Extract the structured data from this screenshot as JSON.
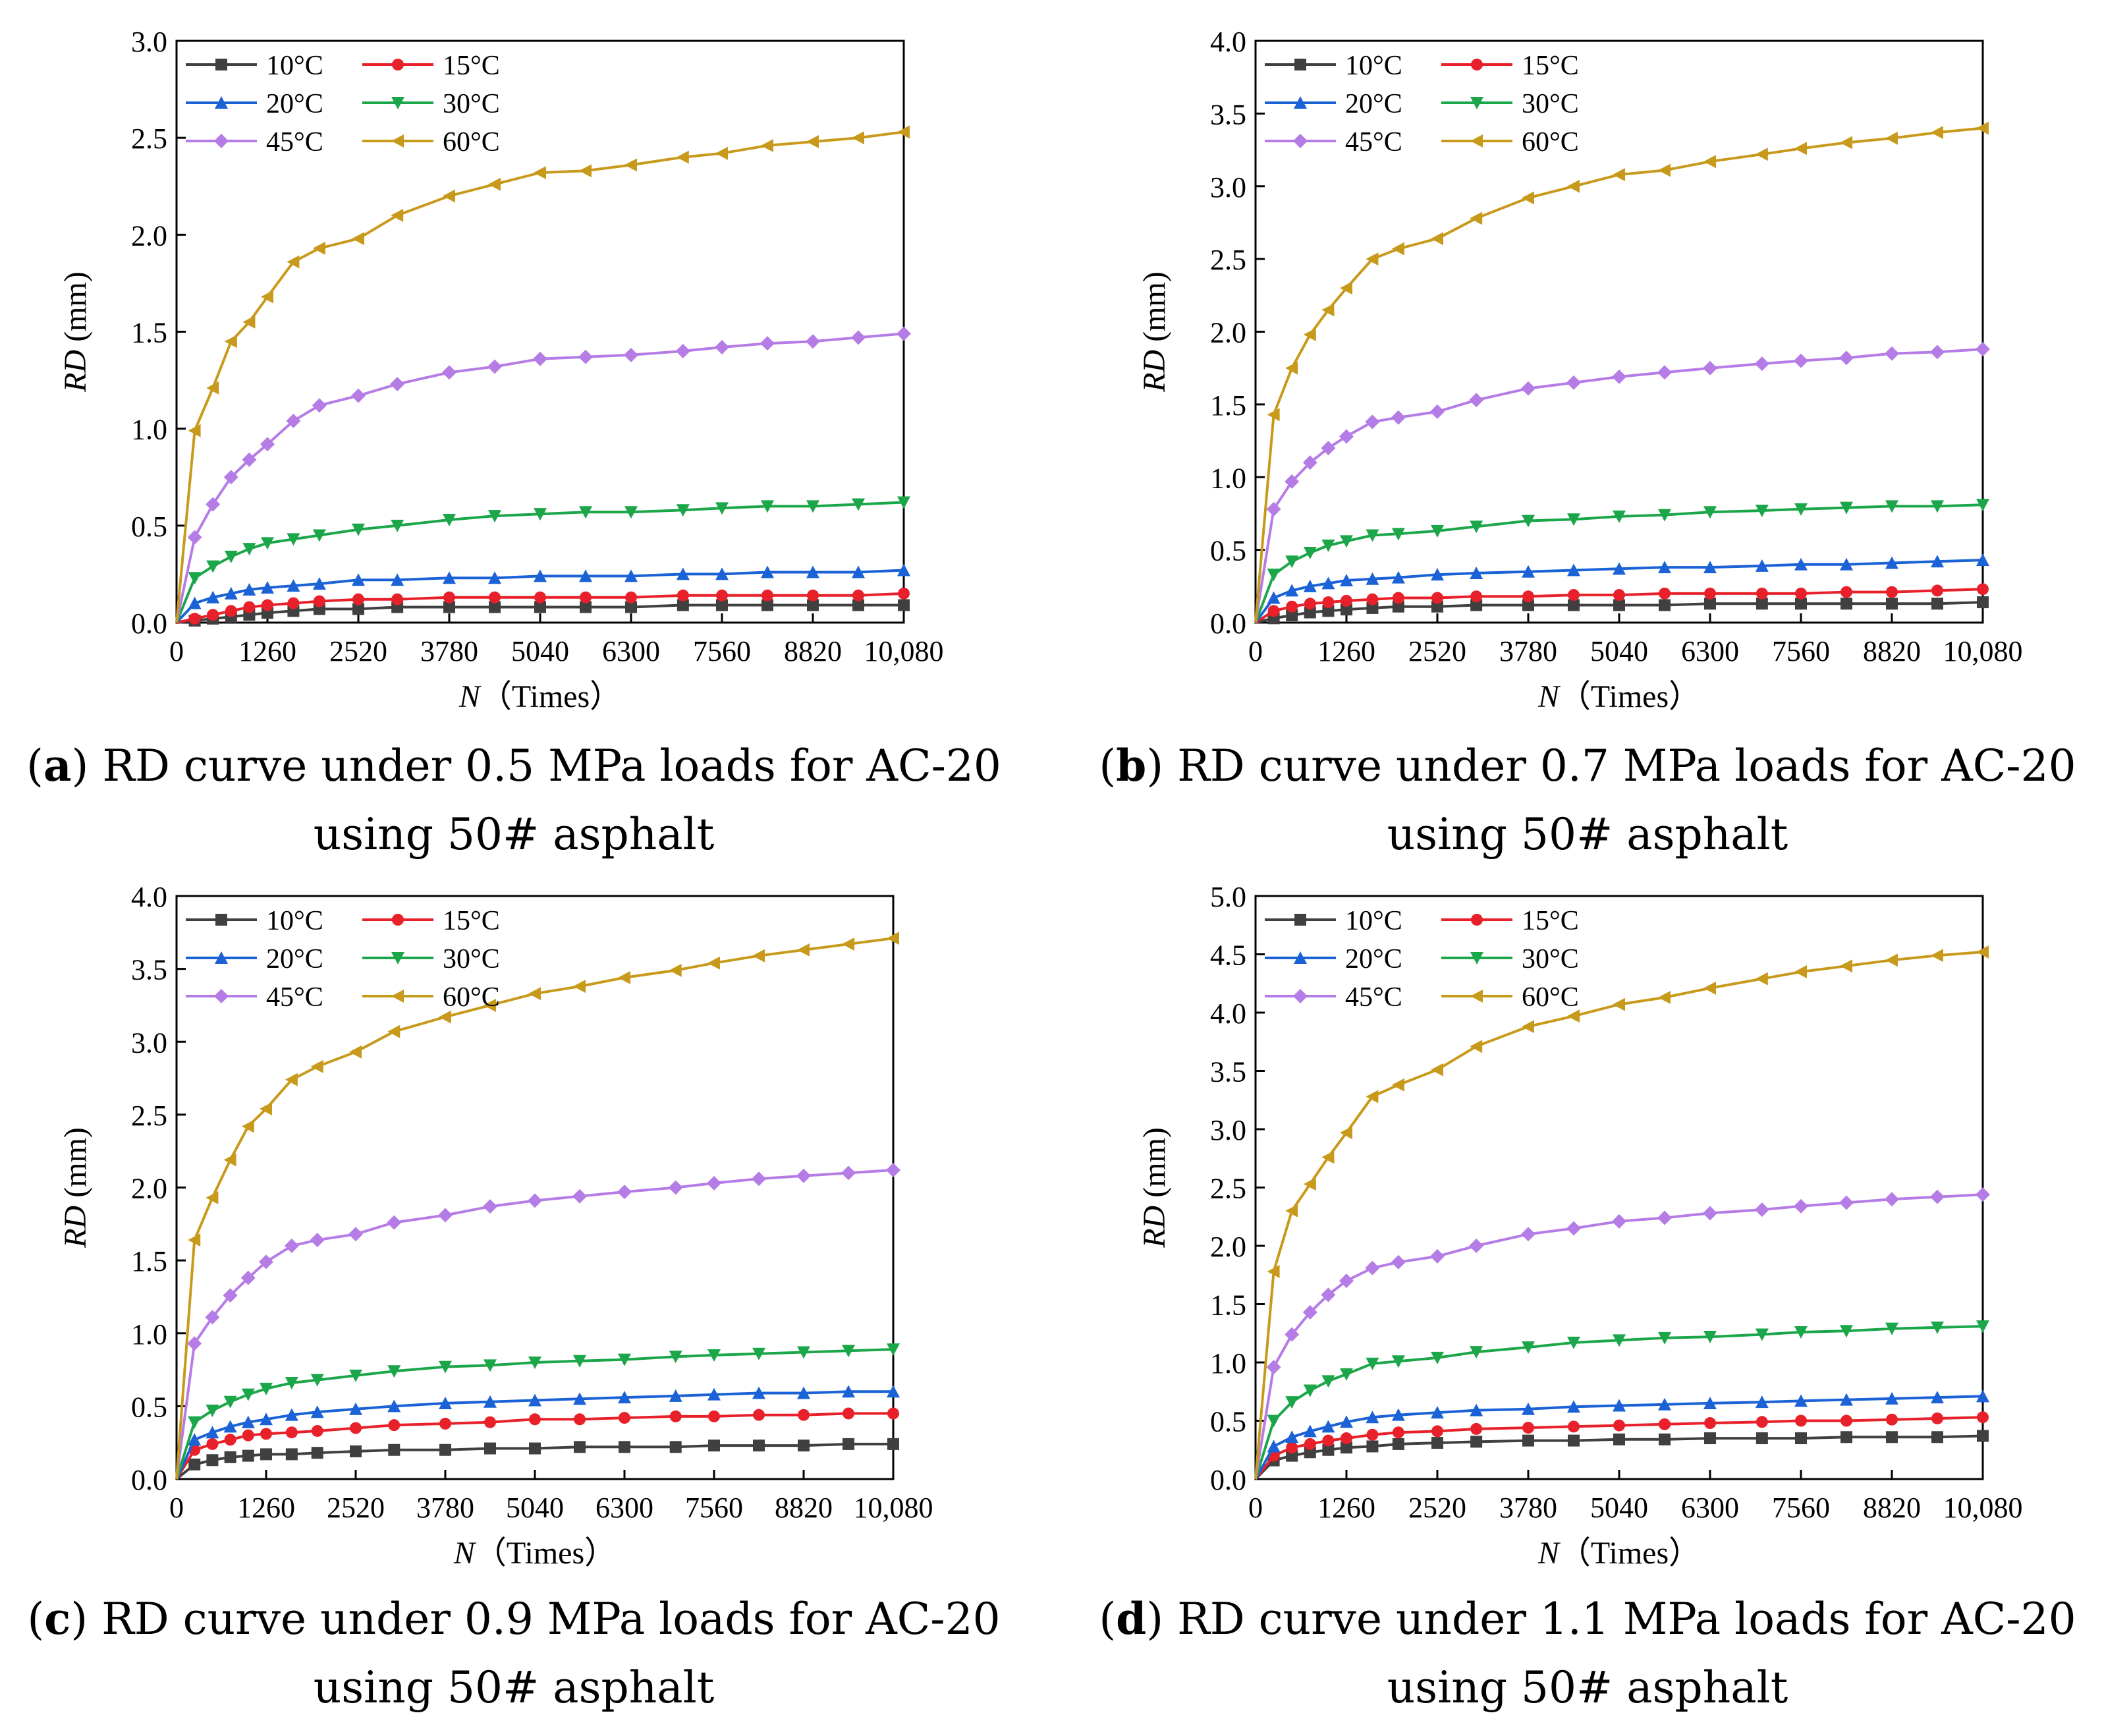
{
  "figure": {
    "series_styles": [
      {
        "name": "10°C",
        "color": "#404040",
        "marker": "square"
      },
      {
        "name": "15°C",
        "color": "#e8202a",
        "marker": "circle"
      },
      {
        "name": "20°C",
        "color": "#1a62d6",
        "marker": "triangle-up"
      },
      {
        "name": "30°C",
        "color": "#1ca64a",
        "marker": "triangle-down"
      },
      {
        "name": "45°C",
        "color": "#b57ce6",
        "marker": "diamond"
      },
      {
        "name": "60°C",
        "color": "#c89a1c",
        "marker": "triangle-left"
      }
    ]
  },
  "chart_data": [
    {
      "id": "a",
      "type": "line",
      "caption_letter": "a",
      "caption_line1": "RD curve under 0.5 MPa loads for AC-20",
      "caption_line2": "using 50# asphalt",
      "ylabel_italic": "RD",
      "ylabel_unit": "(mm)",
      "xlabel_italic": "N",
      "xlabel_unit": "（Times）",
      "ylim": [
        0,
        3.0
      ],
      "yticks": [
        "0.0",
        "0.5",
        "1.0",
        "1.5",
        "2.0",
        "2.5",
        "3.0"
      ],
      "xlim": [
        0,
        10080
      ],
      "xtick_values": [
        0,
        1260,
        2520,
        3780,
        5040,
        6300,
        7560,
        8820,
        10080
      ],
      "xtick_labels": [
        "0",
        "1260",
        "2520",
        "3780",
        "5040",
        "6300",
        "7560",
        "8820",
        "10,080"
      ],
      "x": [
        0,
        252,
        504,
        756,
        1008,
        1260,
        1620,
        1980,
        2520,
        3060,
        3780,
        4410,
        5040,
        5670,
        6300,
        7020,
        7560,
        8190,
        8820,
        9450,
        10080
      ],
      "series": [
        {
          "name": "10°C",
          "values": [
            0,
            0.01,
            0.02,
            0.03,
            0.04,
            0.05,
            0.06,
            0.07,
            0.07,
            0.08,
            0.08,
            0.08,
            0.08,
            0.08,
            0.08,
            0.09,
            0.09,
            0.09,
            0.09,
            0.09,
            0.09
          ]
        },
        {
          "name": "15°C",
          "values": [
            0,
            0.02,
            0.04,
            0.06,
            0.08,
            0.09,
            0.1,
            0.11,
            0.12,
            0.12,
            0.13,
            0.13,
            0.13,
            0.13,
            0.13,
            0.14,
            0.14,
            0.14,
            0.14,
            0.14,
            0.15
          ]
        },
        {
          "name": "20°C",
          "values": [
            0,
            0.1,
            0.13,
            0.15,
            0.17,
            0.18,
            0.19,
            0.2,
            0.22,
            0.22,
            0.23,
            0.23,
            0.24,
            0.24,
            0.24,
            0.25,
            0.25,
            0.26,
            0.26,
            0.26,
            0.27
          ]
        },
        {
          "name": "30°C",
          "values": [
            0,
            0.23,
            0.29,
            0.34,
            0.38,
            0.41,
            0.43,
            0.45,
            0.48,
            0.5,
            0.53,
            0.55,
            0.56,
            0.57,
            0.57,
            0.58,
            0.59,
            0.6,
            0.6,
            0.61,
            0.62
          ]
        },
        {
          "name": "45°C",
          "values": [
            0,
            0.44,
            0.61,
            0.75,
            0.84,
            0.92,
            1.04,
            1.12,
            1.17,
            1.23,
            1.29,
            1.32,
            1.36,
            1.37,
            1.38,
            1.4,
            1.42,
            1.44,
            1.45,
            1.47,
            1.49
          ]
        },
        {
          "name": "60°C",
          "values": [
            0,
            0.99,
            1.21,
            1.45,
            1.55,
            1.68,
            1.86,
            1.93,
            1.98,
            2.1,
            2.2,
            2.26,
            2.32,
            2.33,
            2.36,
            2.4,
            2.42,
            2.46,
            2.48,
            2.5,
            2.53
          ]
        }
      ],
      "legend": "top-left"
    },
    {
      "id": "b",
      "type": "line",
      "caption_letter": "b",
      "caption_line1": "RD curve under 0.7 MPa loads for AC-20",
      "caption_line2": "using 50# asphalt",
      "ylabel_italic": "RD",
      "ylabel_unit": "(mm)",
      "xlabel_italic": "N",
      "xlabel_unit": "（Times）",
      "ylim": [
        0,
        4.0
      ],
      "yticks": [
        "0.0",
        "0.5",
        "1.0",
        "1.5",
        "2.0",
        "2.5",
        "3.0",
        "3.5",
        "4.0"
      ],
      "xlim": [
        0,
        10080
      ],
      "xtick_values": [
        0,
        1260,
        2520,
        3780,
        5040,
        6300,
        7560,
        8820,
        10080
      ],
      "xtick_labels": [
        "0",
        "1260",
        "2520",
        "3780",
        "5040",
        "6300",
        "7560",
        "8820",
        "10,080"
      ],
      "x": [
        0,
        252,
        504,
        756,
        1008,
        1260,
        1620,
        1980,
        2520,
        3060,
        3780,
        4410,
        5040,
        5670,
        6300,
        7020,
        7560,
        8190,
        8820,
        9450,
        10080
      ],
      "series": [
        {
          "name": "10°C",
          "values": [
            0,
            0.03,
            0.05,
            0.07,
            0.08,
            0.09,
            0.1,
            0.11,
            0.11,
            0.12,
            0.12,
            0.12,
            0.12,
            0.12,
            0.13,
            0.13,
            0.13,
            0.13,
            0.13,
            0.13,
            0.14
          ]
        },
        {
          "name": "15°C",
          "values": [
            0,
            0.08,
            0.11,
            0.13,
            0.14,
            0.15,
            0.16,
            0.17,
            0.17,
            0.18,
            0.18,
            0.19,
            0.19,
            0.2,
            0.2,
            0.2,
            0.2,
            0.21,
            0.21,
            0.22,
            0.23
          ]
        },
        {
          "name": "20°C",
          "values": [
            0,
            0.17,
            0.22,
            0.25,
            0.27,
            0.29,
            0.3,
            0.31,
            0.33,
            0.34,
            0.35,
            0.36,
            0.37,
            0.38,
            0.38,
            0.39,
            0.4,
            0.4,
            0.41,
            0.42,
            0.43
          ]
        },
        {
          "name": "30°C",
          "values": [
            0,
            0.33,
            0.42,
            0.48,
            0.53,
            0.56,
            0.6,
            0.61,
            0.63,
            0.66,
            0.7,
            0.71,
            0.73,
            0.74,
            0.76,
            0.77,
            0.78,
            0.79,
            0.8,
            0.8,
            0.81
          ]
        },
        {
          "name": "45°C",
          "values": [
            0,
            0.78,
            0.97,
            1.1,
            1.2,
            1.28,
            1.38,
            1.41,
            1.45,
            1.53,
            1.61,
            1.65,
            1.69,
            1.72,
            1.75,
            1.78,
            1.8,
            1.82,
            1.85,
            1.86,
            1.88
          ]
        },
        {
          "name": "60°C",
          "values": [
            0,
            1.43,
            1.75,
            1.98,
            2.15,
            2.3,
            2.5,
            2.57,
            2.64,
            2.78,
            2.92,
            3.0,
            3.08,
            3.11,
            3.17,
            3.22,
            3.26,
            3.3,
            3.33,
            3.37,
            3.4
          ]
        }
      ],
      "legend": "top-left"
    },
    {
      "id": "c",
      "type": "line",
      "caption_letter": "c",
      "caption_line1": "RD curve under 0.9 MPa loads for AC-20",
      "caption_line2": "using 50# asphalt",
      "ylabel_italic": "RD",
      "ylabel_unit": "(mm)",
      "xlabel_italic": "N",
      "xlabel_unit": "（Times）",
      "ylim": [
        0,
        4.0
      ],
      "yticks": [
        "0.0",
        "0.5",
        "1.0",
        "1.5",
        "2.0",
        "2.5",
        "3.0",
        "3.5",
        "4.0"
      ],
      "xlim": [
        0,
        10080
      ],
      "xtick_values": [
        0,
        1260,
        2520,
        3780,
        5040,
        6300,
        7560,
        8820,
        10080
      ],
      "xtick_labels": [
        "0",
        "1260",
        "2520",
        "3780",
        "5040",
        "6300",
        "7560",
        "8820",
        "10,080"
      ],
      "x": [
        0,
        252,
        504,
        756,
        1008,
        1260,
        1620,
        1980,
        2520,
        3060,
        3780,
        4410,
        5040,
        5670,
        6300,
        7020,
        7560,
        8190,
        8820,
        9450,
        10080
      ],
      "series": [
        {
          "name": "10°C",
          "values": [
            0,
            0.1,
            0.13,
            0.15,
            0.16,
            0.17,
            0.17,
            0.18,
            0.19,
            0.2,
            0.2,
            0.21,
            0.21,
            0.22,
            0.22,
            0.22,
            0.23,
            0.23,
            0.23,
            0.24,
            0.24
          ]
        },
        {
          "name": "15°C",
          "values": [
            0,
            0.2,
            0.24,
            0.27,
            0.3,
            0.31,
            0.32,
            0.33,
            0.35,
            0.37,
            0.38,
            0.39,
            0.41,
            0.41,
            0.42,
            0.43,
            0.43,
            0.44,
            0.44,
            0.45,
            0.45
          ]
        },
        {
          "name": "20°C",
          "values": [
            0,
            0.27,
            0.32,
            0.36,
            0.39,
            0.41,
            0.44,
            0.46,
            0.48,
            0.5,
            0.52,
            0.53,
            0.54,
            0.55,
            0.56,
            0.57,
            0.58,
            0.59,
            0.59,
            0.6,
            0.6
          ]
        },
        {
          "name": "30°C",
          "values": [
            0,
            0.39,
            0.47,
            0.53,
            0.58,
            0.62,
            0.66,
            0.68,
            0.71,
            0.74,
            0.77,
            0.78,
            0.8,
            0.81,
            0.82,
            0.84,
            0.85,
            0.86,
            0.87,
            0.88,
            0.89
          ]
        },
        {
          "name": "45°C",
          "values": [
            0,
            0.93,
            1.11,
            1.26,
            1.38,
            1.49,
            1.6,
            1.64,
            1.68,
            1.76,
            1.81,
            1.87,
            1.91,
            1.94,
            1.97,
            2.0,
            2.03,
            2.06,
            2.08,
            2.1,
            2.12
          ]
        },
        {
          "name": "60°C",
          "values": [
            0,
            1.64,
            1.93,
            2.19,
            2.42,
            2.54,
            2.74,
            2.83,
            2.93,
            3.07,
            3.17,
            3.25,
            3.33,
            3.38,
            3.44,
            3.49,
            3.54,
            3.59,
            3.63,
            3.67,
            3.71
          ]
        }
      ],
      "legend": "top-left"
    },
    {
      "id": "d",
      "type": "line",
      "caption_letter": "d",
      "caption_line1": "RD curve under 1.1 MPa loads for AC-20",
      "caption_line2": "using 50# asphalt",
      "ylabel_italic": "RD",
      "ylabel_unit": "(mm)",
      "xlabel_italic": "N",
      "xlabel_unit": "（Times）",
      "ylim": [
        0,
        5.0
      ],
      "yticks": [
        "0.0",
        "0.5",
        "1.0",
        "1.5",
        "2.0",
        "2.5",
        "3.0",
        "3.5",
        "4.0",
        "4.5",
        "5.0"
      ],
      "xlim": [
        0,
        10080
      ],
      "xtick_values": [
        0,
        1260,
        2520,
        3780,
        5040,
        6300,
        7560,
        8820,
        10080
      ],
      "xtick_labels": [
        "0",
        "1260",
        "2520",
        "3780",
        "5040",
        "6300",
        "7560",
        "8820",
        "10,080"
      ],
      "x": [
        0,
        252,
        504,
        756,
        1008,
        1260,
        1620,
        1980,
        2520,
        3060,
        3780,
        4410,
        5040,
        5670,
        6300,
        7020,
        7560,
        8190,
        8820,
        9450,
        10080
      ],
      "series": [
        {
          "name": "10°C",
          "values": [
            0,
            0.16,
            0.2,
            0.23,
            0.25,
            0.27,
            0.28,
            0.3,
            0.31,
            0.32,
            0.33,
            0.33,
            0.34,
            0.34,
            0.35,
            0.35,
            0.35,
            0.36,
            0.36,
            0.36,
            0.37
          ]
        },
        {
          "name": "15°C",
          "values": [
            0,
            0.2,
            0.27,
            0.3,
            0.33,
            0.35,
            0.38,
            0.4,
            0.41,
            0.43,
            0.44,
            0.45,
            0.46,
            0.47,
            0.48,
            0.49,
            0.5,
            0.5,
            0.51,
            0.52,
            0.53
          ]
        },
        {
          "name": "20°C",
          "values": [
            0,
            0.28,
            0.36,
            0.41,
            0.45,
            0.49,
            0.53,
            0.55,
            0.57,
            0.59,
            0.6,
            0.62,
            0.63,
            0.64,
            0.65,
            0.66,
            0.67,
            0.68,
            0.69,
            0.7,
            0.71
          ]
        },
        {
          "name": "30°C",
          "values": [
            0,
            0.5,
            0.66,
            0.76,
            0.84,
            0.9,
            0.99,
            1.01,
            1.04,
            1.09,
            1.13,
            1.17,
            1.19,
            1.21,
            1.22,
            1.24,
            1.26,
            1.27,
            1.29,
            1.3,
            1.31
          ]
        },
        {
          "name": "45°C",
          "values": [
            0,
            0.96,
            1.24,
            1.43,
            1.58,
            1.7,
            1.81,
            1.86,
            1.91,
            2.0,
            2.1,
            2.15,
            2.21,
            2.24,
            2.28,
            2.31,
            2.34,
            2.37,
            2.4,
            2.42,
            2.44
          ]
        },
        {
          "name": "60°C",
          "values": [
            0,
            1.78,
            2.3,
            2.53,
            2.76,
            2.97,
            3.28,
            3.38,
            3.51,
            3.71,
            3.88,
            3.97,
            4.07,
            4.13,
            4.21,
            4.29,
            4.35,
            4.4,
            4.45,
            4.49,
            4.52
          ]
        }
      ],
      "legend": "top-left"
    }
  ]
}
